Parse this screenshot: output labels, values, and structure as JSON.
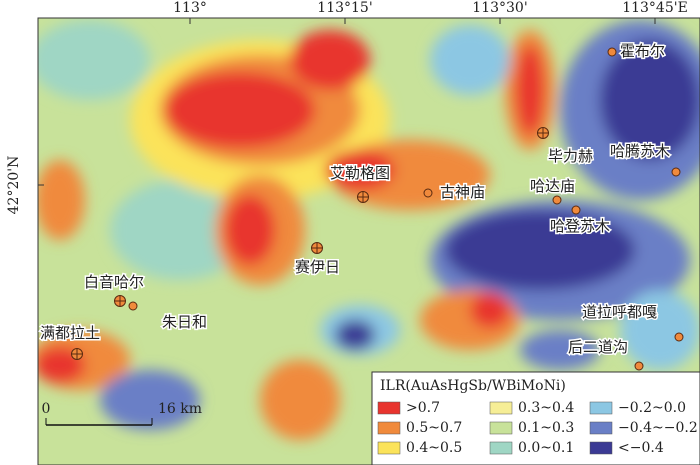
{
  "axes": {
    "top_labels": [
      "113°",
      "113°15'",
      "113°30'",
      "113°45'E"
    ],
    "left_labels": [
      "42°20'N"
    ]
  },
  "places": [
    {
      "name": "霍布尔"
    },
    {
      "name": "毕力赫"
    },
    {
      "name": "哈腾苏木"
    },
    {
      "name": "艾勒格图"
    },
    {
      "name": "古神庙"
    },
    {
      "name": "哈达庙"
    },
    {
      "name": "哈登苏木"
    },
    {
      "name": "赛伊日"
    },
    {
      "name": "白音哈尔"
    },
    {
      "name": "朱日和"
    },
    {
      "name": "满都拉土"
    },
    {
      "name": "道拉呼都嘎"
    },
    {
      "name": "后二道沟"
    }
  ],
  "legend": {
    "title": "ILR(AuAsHgSb/WBiMoNi)",
    "items": [
      {
        "label": ">0.7",
        "color": "#e8342e"
      },
      {
        "label": "0.5~0.7",
        "color": "#f08a3c"
      },
      {
        "label": "0.4~0.5",
        "color": "#fbe35a"
      },
      {
        "label": "0.3~0.4",
        "color": "#f6ee96"
      },
      {
        "label": "0.1~0.3",
        "color": "#c8e29a"
      },
      {
        "label": "0.0~0.1",
        "color": "#9fd6c4"
      },
      {
        "label": "−0.2~0.0",
        "color": "#8cc7e3"
      },
      {
        "label": "−0.4~−0.2",
        "color": "#6a7fc6"
      },
      {
        "label": "<−0.4",
        "color": "#3b3a94"
      }
    ]
  },
  "scale_bar": {
    "start": "0",
    "end": "16 km"
  }
}
